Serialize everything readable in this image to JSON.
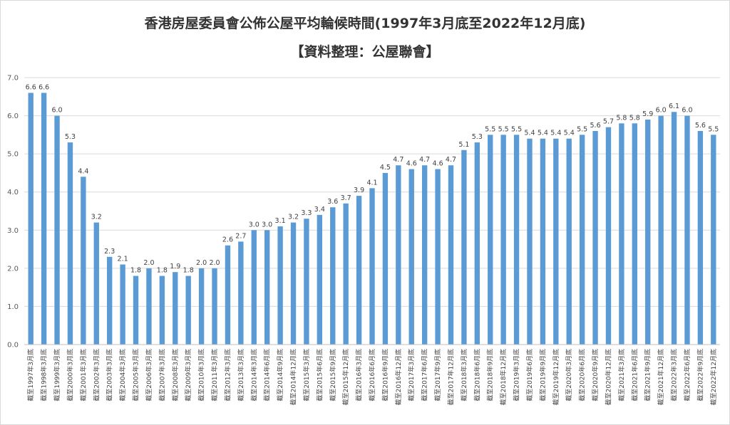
{
  "chart_data": {
    "type": "bar",
    "title": "香港房屋委員會公佈公屋平均輪候時間(1997年3月底至2022年12月底)",
    "subtitle": "【資料整理：公屋聯會】",
    "xlabel": "",
    "ylabel": "",
    "ylim": [
      0,
      7
    ],
    "yticks": [
      "0.0",
      "1.0",
      "2.0",
      "3.0",
      "4.0",
      "5.0",
      "6.0",
      "7.0"
    ],
    "grid": true,
    "color": "#5b9bd5",
    "categories": [
      "截至1997年3月底",
      "截至1998年3月底",
      "截至1999年3月底",
      "截至2000年3月底",
      "截至2001年3月底",
      "截至2002年3月底",
      "截至2003年3月底",
      "截至2004年3月底",
      "截至2005年3月底",
      "截至2006年3月底",
      "截至2007年3月底",
      "截至2008年3月底",
      "截至2009年3月底",
      "截至2010年3月底",
      "截至2011年3月底",
      "截至2012年3月底",
      "截至2013年3月底",
      "截至2014年3月底",
      "截至2014年6月底",
      "截至2014年9月底",
      "截至2014年12月底",
      "截至2015年3月底",
      "截至2015年6月底",
      "截至2015年9月底",
      "截至2015年12月底",
      "截至2016年3月底",
      "截至2016年6月底",
      "截至2016年9月底",
      "截至2016年12月底",
      "截至2017年3月底",
      "截至2017年6月底",
      "截至2017年9月底",
      "截至2017年12月底",
      "截至2018年3月底",
      "截至2018年6月底",
      "截至2018年9月底",
      "截至2018年12月底",
      "截至2019年3月底",
      "截至2019年6月底",
      "截至2019年9月底",
      "截至2019年12月底",
      "截至2020年3月底",
      "截至2020年6月底",
      "截至2020年9月底",
      "截至2020年12月底",
      "截至2021年3月底",
      "截至2021年6月底",
      "截至2021年9月底",
      "截至2021年12月底",
      "截至2022年3月底",
      "截至2022年6月底",
      "截至2022年9月底",
      "截至2022年12月底"
    ],
    "values": [
      6.6,
      6.6,
      6.0,
      5.3,
      4.4,
      3.2,
      2.3,
      2.1,
      1.8,
      2.0,
      1.8,
      1.9,
      1.8,
      2.0,
      2.0,
      2.6,
      2.7,
      3.0,
      3.0,
      3.1,
      3.2,
      3.3,
      3.4,
      3.6,
      3.7,
      3.9,
      4.1,
      4.5,
      4.7,
      4.6,
      4.7,
      4.6,
      4.7,
      5.1,
      5.3,
      5.5,
      5.5,
      5.5,
      5.4,
      5.4,
      5.4,
      5.4,
      5.5,
      5.6,
      5.7,
      5.8,
      5.8,
      5.9,
      6.0,
      6.1,
      6.0,
      5.6,
      5.5
    ]
  }
}
